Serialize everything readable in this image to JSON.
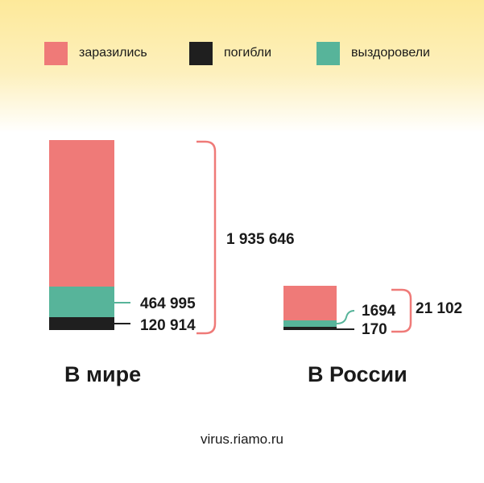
{
  "legend": [
    {
      "label": "заразились",
      "color": "#ef7a78"
    },
    {
      "label": "погибли",
      "color": "#1f1f1f"
    },
    {
      "label": "выздоровели",
      "color": "#57b49a"
    }
  ],
  "chart_data": {
    "type": "bar",
    "stacked": true,
    "categories": [
      "В мире",
      "В России"
    ],
    "series": [
      {
        "name": "погибли",
        "values": [
          120914,
          170
        ],
        "color": "#1f1f1f"
      },
      {
        "name": "выздоровели",
        "values": [
          464995,
          1694
        ],
        "color": "#57b49a"
      },
      {
        "name": "заразились",
        "values": [
          1349737,
          19238
        ],
        "color": "#ef7a78"
      }
    ],
    "totals": [
      1935646,
      21102
    ],
    "labels": {
      "world": {
        "total": "1 935 646",
        "recovered": "464 995",
        "deaths": "120 914"
      },
      "russia": {
        "total": "21 102",
        "recovered": "1694",
        "deaths": "170"
      }
    }
  },
  "source": "virus.riamo.ru"
}
